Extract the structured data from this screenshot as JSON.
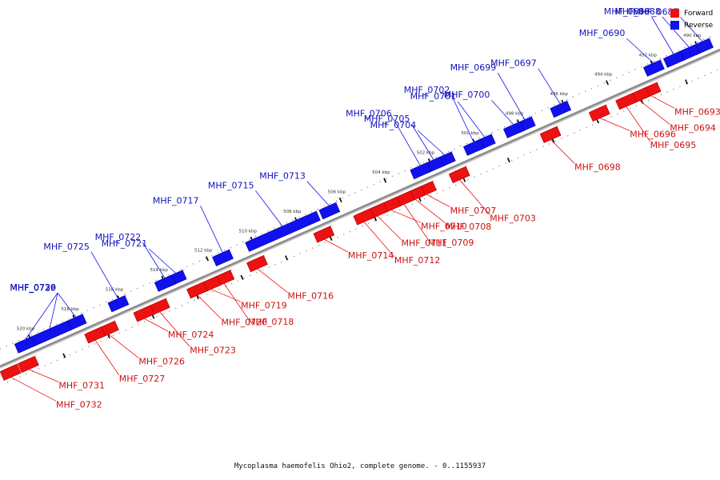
{
  "caption": "Mycoplasma haemofelis Ohio2, complete genome. - 0..1155937",
  "legend": [
    {
      "label": "Forward",
      "color": "#ee1111"
    },
    {
      "label": "Reverse",
      "color": "#1111ee"
    }
  ],
  "colors": {
    "forward": "#ee1111",
    "forward_dark": "#a80000",
    "forward_light": "#ff6a6a",
    "reverse": "#1111ee",
    "reverse_dark": "#0000a0",
    "reverse_light": "#6a6aff",
    "backbone": "#8c8c8c"
  },
  "scale_ticks": [
    "490 kbp",
    "492 kbp",
    "494 kbp",
    "496 kbp",
    "498 kbp",
    "500 kbp",
    "502 kbp",
    "504 kbp",
    "506 kbp",
    "508 kbp",
    "510 kbp",
    "512 kbp",
    "514 kbp",
    "516 kbp",
    "518 kbp",
    "520 kbp"
  ],
  "genes": [
    {
      "name": "MHF_0687",
      "strand": "reverse",
      "kbp": 489.8
    },
    {
      "name": "MHF_0688",
      "strand": "reverse",
      "kbp": 490.4
    },
    {
      "name": "MHF_0689",
      "strand": "reverse",
      "kbp": 491.1
    },
    {
      "name": "MHF_0690",
      "strand": "reverse",
      "kbp": 492.0
    },
    {
      "name": "MHF_0693",
      "strand": "forward",
      "kbp": 492.5
    },
    {
      "name": "MHF_0694",
      "strand": "forward",
      "kbp": 493.0
    },
    {
      "name": "MHF_0695",
      "strand": "forward",
      "kbp": 493.6
    },
    {
      "name": "MHF_0696",
      "strand": "forward",
      "kbp": 494.8
    },
    {
      "name": "MHF_0697",
      "strand": "reverse",
      "kbp": 496.2
    },
    {
      "name": "MHF_0698",
      "strand": "forward",
      "kbp": 497.0
    },
    {
      "name": "MHF_0699",
      "strand": "reverse",
      "kbp": 497.8
    },
    {
      "name": "MHF_0700",
      "strand": "reverse",
      "kbp": 498.3
    },
    {
      "name": "MHF_0701",
      "strand": "reverse",
      "kbp": 499.6
    },
    {
      "name": "MHF_0702",
      "strand": "reverse",
      "kbp": 500.1
    },
    {
      "name": "MHF_0703",
      "strand": "forward",
      "kbp": 501.1
    },
    {
      "name": "MHF_0704",
      "strand": "reverse",
      "kbp": 501.4
    },
    {
      "name": "MHF_0705",
      "strand": "reverse",
      "kbp": 501.9
    },
    {
      "name": "MHF_0706",
      "strand": "reverse",
      "kbp": 502.5
    },
    {
      "name": "MHF_0707",
      "strand": "forward",
      "kbp": 502.6
    },
    {
      "name": "MHF_0708",
      "strand": "forward",
      "kbp": 503.1
    },
    {
      "name": "MHF_0709",
      "strand": "forward",
      "kbp": 503.6
    },
    {
      "name": "MHF_0710",
      "strand": "forward",
      "kbp": 504.2
    },
    {
      "name": "MHF_0711",
      "strand": "forward",
      "kbp": 504.8
    },
    {
      "name": "MHF_0712",
      "strand": "forward",
      "kbp": 505.4
    },
    {
      "name": "MHF_0713",
      "strand": "reverse",
      "kbp": 506.6
    },
    {
      "name": "MHF_0714",
      "strand": "forward",
      "kbp": 507.2
    },
    {
      "name": "MHF_0715",
      "strand": "reverse",
      "kbp": 508.7
    },
    {
      "name": "MHF_0716",
      "strand": "forward",
      "kbp": 510.2
    },
    {
      "name": "MHF_0717",
      "strand": "reverse",
      "kbp": 511.4
    },
    {
      "name": "MHF_0718",
      "strand": "forward",
      "kbp": 511.7
    },
    {
      "name": "MHF_0719",
      "strand": "forward",
      "kbp": 512.3
    },
    {
      "name": "MHF_0720",
      "strand": "forward",
      "kbp": 512.9
    },
    {
      "name": "MHF_0721",
      "strand": "reverse",
      "kbp": 513.5
    },
    {
      "name": "MHF_0722",
      "strand": "reverse",
      "kbp": 514.0
    },
    {
      "name": "MHF_0723",
      "strand": "forward",
      "kbp": 514.6
    },
    {
      "name": "MHF_0724",
      "strand": "forward",
      "kbp": 515.3
    },
    {
      "name": "MHF_0725",
      "strand": "reverse",
      "kbp": 516.1
    },
    {
      "name": "MHF_0726",
      "strand": "forward",
      "kbp": 516.9
    },
    {
      "name": "MHF_0727",
      "strand": "forward",
      "kbp": 517.5
    },
    {
      "name": "MHF_0728",
      "strand": "reverse",
      "kbp": 518.0
    },
    {
      "name": "MHF_0729",
      "strand": "reverse",
      "kbp": 519.2
    },
    {
      "name": "MHF_0730",
      "strand": "reverse",
      "kbp": 520.3
    },
    {
      "name": "MHF_0731",
      "strand": "forward",
      "kbp": 520.5
    },
    {
      "name": "MHF_0732",
      "strand": "forward",
      "kbp": 521.3
    }
  ]
}
